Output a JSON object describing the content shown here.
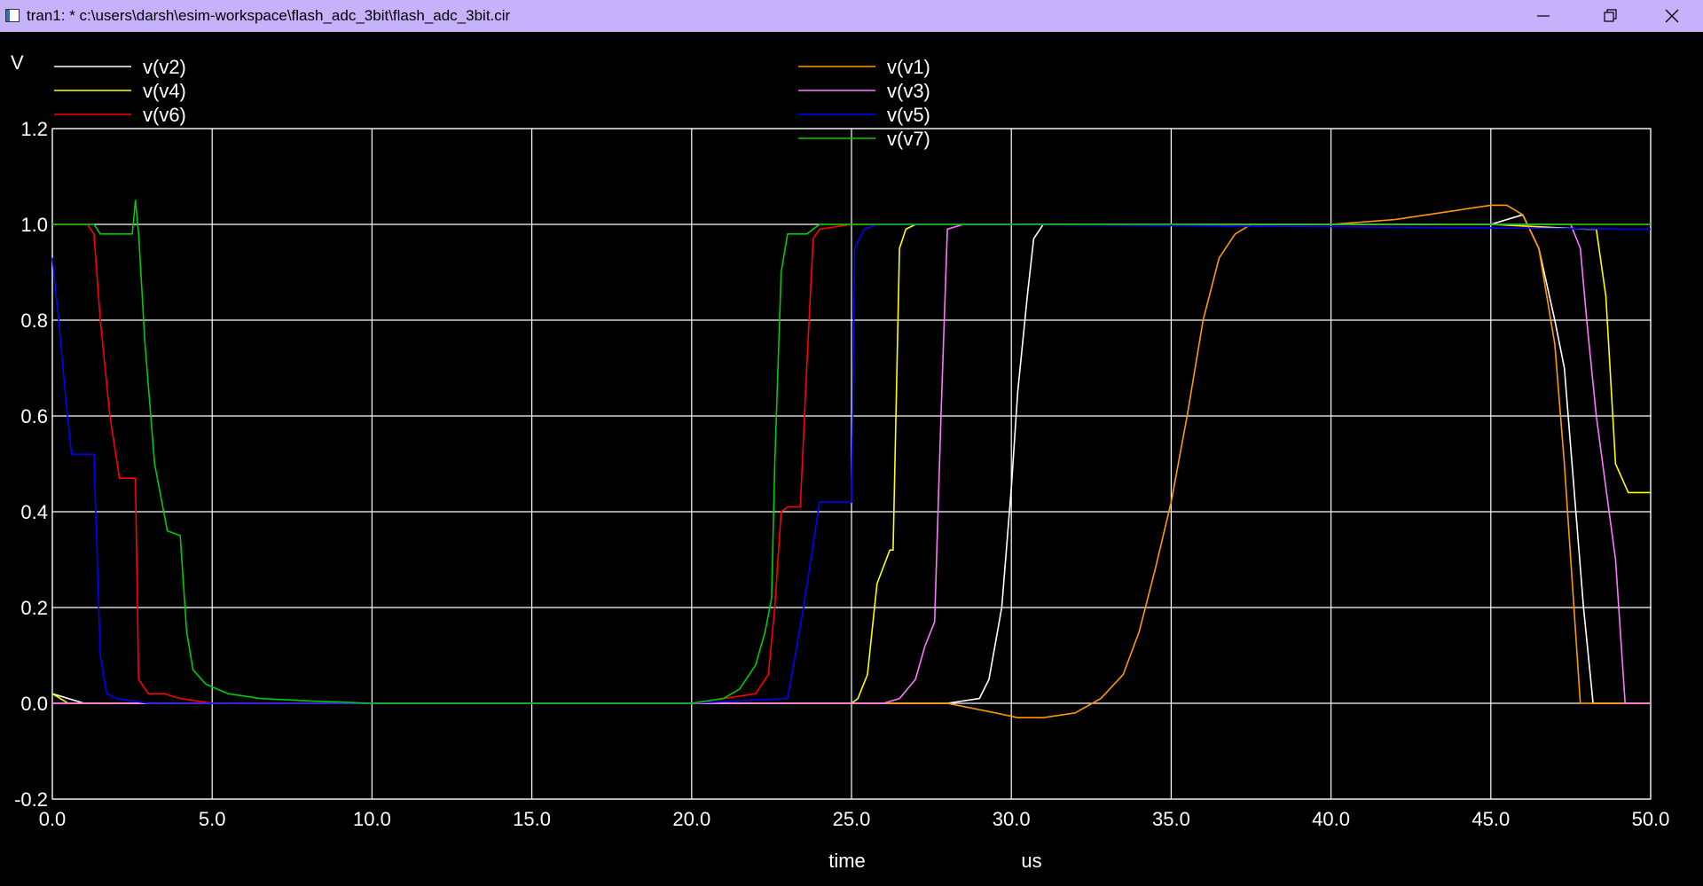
{
  "window": {
    "title": "tran1: * c:\\users\\darsh\\esim-workspace\\flash_adc_3bit\\flash_adc_3bit.cir",
    "minimize_icon": "minimize-icon",
    "maximize_icon": "restore-icon",
    "close_icon": "close-icon"
  },
  "chart_data": {
    "type": "line",
    "ylabel": "V",
    "xlabel": "time",
    "xunit": "us",
    "xlim": [
      0,
      50
    ],
    "ylim": [
      -0.2,
      1.2
    ],
    "xticks": [
      0,
      5,
      10,
      15,
      20,
      25,
      30,
      35,
      40,
      45,
      50
    ],
    "xtick_labels": [
      "0.0",
      "5.0",
      "10.0",
      "15.0",
      "20.0",
      "25.0",
      "30.0",
      "35.0",
      "40.0",
      "45.0",
      "50.0"
    ],
    "yticks": [
      -0.2,
      0,
      0.2,
      0.4,
      0.6,
      0.8,
      1.0,
      1.2
    ],
    "ytick_labels": [
      "-0.2",
      "0.0",
      "0.2",
      "0.4",
      "0.6",
      "0.8",
      "1.0",
      "1.2"
    ],
    "grid": true,
    "legend_position": "top",
    "series": [
      {
        "name": "v(v2)",
        "color": "#ffffff",
        "x": [
          0,
          1,
          3,
          5,
          10,
          15,
          20,
          25,
          27,
          28,
          29,
          29.3,
          29.7,
          30,
          30.2,
          30.5,
          30.7,
          31,
          31.5,
          35,
          40,
          45,
          46,
          46.5,
          47,
          47.3,
          47.6,
          47.9,
          48.2,
          50
        ],
        "y": [
          0.02,
          0,
          0,
          0,
          0,
          0,
          0,
          0,
          0,
          0,
          0.01,
          0.05,
          0.2,
          0.45,
          0.65,
          0.85,
          0.97,
          1.0,
          1.0,
          1.0,
          1.0,
          1.0,
          1.02,
          0.95,
          0.8,
          0.7,
          0.45,
          0.2,
          0,
          0
        ]
      },
      {
        "name": "v(v4)",
        "color": "#ffff00",
        "x": [
          0,
          0.5,
          2,
          10,
          20,
          25,
          25.2,
          25.5,
          25.8,
          26.2,
          26.3,
          26.5,
          26.7,
          27,
          30,
          40,
          45,
          48,
          48.3,
          48.6,
          48.9,
          49.3,
          50
        ],
        "y": [
          0.02,
          0,
          0,
          0,
          0,
          0,
          0.01,
          0.06,
          0.25,
          0.32,
          0.32,
          0.95,
          0.99,
          1.0,
          1.0,
          1.0,
          1.0,
          0.99,
          0.99,
          0.85,
          0.5,
          0.44,
          0.44
        ]
      },
      {
        "name": "v(v6)",
        "color": "#ff0000",
        "x": [
          0,
          1.1,
          1.3,
          1.5,
          1.8,
          2.1,
          2.3,
          2.6,
          2.7,
          3,
          3.5,
          4,
          5,
          10,
          20,
          22,
          22.4,
          22.6,
          22.8,
          23,
          23.4,
          23.6,
          23.8,
          24,
          25,
          30,
          40,
          50
        ],
        "y": [
          1.0,
          1.0,
          0.98,
          0.8,
          0.6,
          0.47,
          0.47,
          0.47,
          0.05,
          0.02,
          0.02,
          0.01,
          0,
          0,
          0,
          0.02,
          0.06,
          0.2,
          0.4,
          0.41,
          0.41,
          0.7,
          0.97,
          0.99,
          1.0,
          1.0,
          1.0,
          1.0
        ]
      },
      {
        "name": "v(v1)",
        "color": "#ff9900",
        "x": [
          0,
          20,
          28,
          29.5,
          30.2,
          31,
          32,
          32.8,
          33.5,
          34,
          34.5,
          35,
          35.5,
          36,
          36.5,
          37,
          37.5,
          40,
          42,
          44,
          45,
          45.5,
          46,
          46.5,
          47,
          47.3,
          47.6,
          47.8,
          48,
          50
        ],
        "y": [
          0,
          0,
          0,
          -0.02,
          -0.03,
          -0.03,
          -0.02,
          0.01,
          0.06,
          0.15,
          0.28,
          0.42,
          0.6,
          0.8,
          0.93,
          0.98,
          1.0,
          1.0,
          1.01,
          1.03,
          1.04,
          1.04,
          1.02,
          0.95,
          0.75,
          0.5,
          0.2,
          0,
          0,
          0
        ]
      },
      {
        "name": "v(v3)",
        "color": "#ff77ff",
        "x": [
          0,
          10,
          26,
          26.5,
          27,
          27.3,
          27.6,
          27.8,
          28,
          28.5,
          30,
          40,
          45,
          47.5,
          47.8,
          48,
          48.3,
          48.6,
          48.9,
          49.2,
          50
        ],
        "y": [
          0,
          0,
          0,
          0.01,
          0.05,
          0.12,
          0.17,
          0.6,
          0.99,
          1.0,
          1.0,
          1.0,
          1.0,
          1.0,
          0.95,
          0.8,
          0.6,
          0.45,
          0.3,
          0,
          0
        ]
      },
      {
        "name": "v(v5)",
        "color": "#0000ff",
        "x": [
          0,
          0.2,
          0.4,
          0.6,
          0.8,
          1.0,
          1.3,
          1.5,
          1.7,
          2,
          3,
          5,
          10,
          20,
          23,
          23.5,
          24,
          24.3,
          24.6,
          25,
          25.1,
          25.4,
          25.8,
          26,
          30,
          50
        ],
        "y": [
          0.93,
          0.8,
          0.65,
          0.52,
          0.52,
          0.52,
          0.52,
          0.1,
          0.02,
          0.01,
          0,
          0,
          0,
          0,
          0.01,
          0.2,
          0.42,
          0.42,
          0.42,
          0.42,
          0.95,
          0.99,
          1.0,
          1.0,
          1.0,
          0.99
        ]
      },
      {
        "name": "v(v7)",
        "color": "#00cc00",
        "x": [
          0,
          1.3,
          1.5,
          2.5,
          2.6,
          2.7,
          2.9,
          3.2,
          3.6,
          4.0,
          4.2,
          4.4,
          4.8,
          5.5,
          6.5,
          8,
          10,
          15,
          20,
          21,
          21.5,
          22,
          22.3,
          22.5,
          22.6,
          22.8,
          23,
          23.3,
          23.6,
          24,
          25,
          30,
          40,
          50
        ],
        "y": [
          1.0,
          1.0,
          0.98,
          0.98,
          1.05,
          0.98,
          0.75,
          0.5,
          0.36,
          0.35,
          0.15,
          0.07,
          0.04,
          0.02,
          0.01,
          0.005,
          0,
          0,
          0,
          0.01,
          0.03,
          0.08,
          0.15,
          0.22,
          0.5,
          0.9,
          0.98,
          0.98,
          0.98,
          1.0,
          1.0,
          1.0,
          1.0,
          1.0
        ]
      }
    ]
  }
}
